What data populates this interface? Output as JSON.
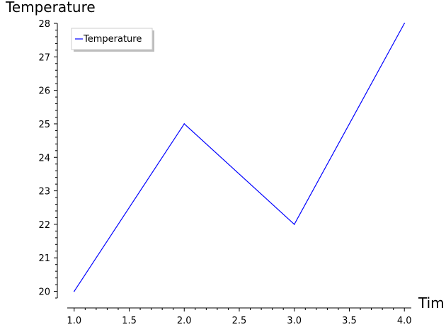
{
  "chart_data": {
    "type": "line",
    "ylabel": "Temperature",
    "xlabel": "Tim",
    "x": [
      1.0,
      2.0,
      3.0,
      4.0
    ],
    "series": [
      {
        "name": "Temperature",
        "values": [
          20,
          25,
          22,
          28
        ],
        "color": "#0000ff"
      }
    ],
    "xlim": [
      0.95,
      4.05
    ],
    "ylim": [
      19.8,
      28.0
    ],
    "x_major_ticks": [
      1.0,
      1.5,
      2.0,
      2.5,
      3.0,
      3.5,
      4.0
    ],
    "x_tick_labels": [
      "1.0",
      "1.5",
      "2.0",
      "2.5",
      "3.0",
      "3.5",
      "4.0"
    ],
    "y_major_ticks": [
      20,
      21,
      22,
      23,
      24,
      25,
      26,
      27,
      28
    ],
    "y_tick_labels": [
      "20",
      "21",
      "22",
      "23",
      "24",
      "25",
      "26",
      "27",
      "28"
    ],
    "grid": false,
    "legend_position": "top-left"
  }
}
